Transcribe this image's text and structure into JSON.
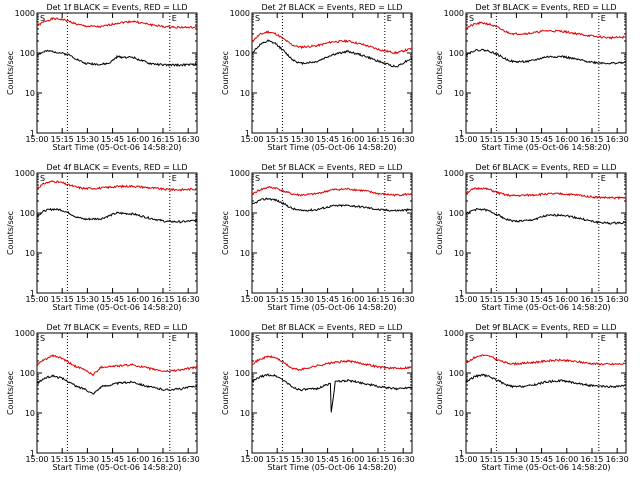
{
  "colors": {
    "events": "#000000",
    "lld": "#e00000",
    "background": "#ffffff"
  },
  "chart_data": [
    {
      "type": "line",
      "title": "Det 1f BLACK = Events, RED = LLD",
      "xlabel": "Start Time (05-Oct-06 14:58:20)",
      "ylabel": "Counts/sec",
      "yscale": "log",
      "ylim": [
        1,
        1000
      ],
      "ytick_labels": [
        "1",
        "10",
        "100",
        "1000"
      ],
      "xlim": [
        0,
        100
      ],
      "xtick_labels": [
        "15:00",
        "15:15",
        "15:30",
        "15:45",
        "16:00",
        "16:15",
        "16:30"
      ],
      "vlines": [
        {
          "x": 19,
          "label": "S"
        },
        {
          "x": 83,
          "label": "E"
        }
      ],
      "series": [
        {
          "name": "LLD",
          "color": "#e00000",
          "x": [
            0,
            5,
            10,
            15,
            20,
            25,
            30,
            40,
            50,
            60,
            70,
            80,
            90,
            100
          ],
          "values": [
            480,
            620,
            720,
            700,
            620,
            520,
            470,
            450,
            560,
            620,
            520,
            450,
            440,
            430
          ]
        },
        {
          "name": "Events",
          "color": "#000000",
          "x": [
            0,
            5,
            10,
            15,
            20,
            25,
            30,
            40,
            45,
            50,
            60,
            70,
            80,
            90,
            100
          ],
          "values": [
            90,
            110,
            110,
            100,
            90,
            70,
            55,
            52,
            55,
            80,
            78,
            55,
            50,
            50,
            52
          ]
        }
      ]
    },
    {
      "type": "line",
      "title": "Det 2f BLACK = Events, RED = LLD",
      "xlabel": "Start Time (05-Oct-06 14:58:20)",
      "ylabel": "Counts/sec",
      "yscale": "log",
      "ylim": [
        1,
        1000
      ],
      "ytick_labels": [
        "1",
        "10",
        "100",
        "1000"
      ],
      "xlim": [
        0,
        100
      ],
      "xtick_labels": [
        "15:00",
        "15:15",
        "15:30",
        "15:45",
        "16:00",
        "16:15",
        "16:30"
      ],
      "vlines": [
        {
          "x": 19,
          "label": "S"
        },
        {
          "x": 83,
          "label": "E"
        }
      ],
      "series": [
        {
          "name": "LLD",
          "color": "#e00000",
          "x": [
            0,
            5,
            10,
            15,
            20,
            25,
            30,
            40,
            50,
            60,
            70,
            80,
            90,
            100
          ],
          "values": [
            200,
            290,
            340,
            300,
            220,
            160,
            140,
            150,
            190,
            200,
            160,
            120,
            100,
            130
          ]
        },
        {
          "name": "Events",
          "color": "#000000",
          "x": [
            0,
            5,
            10,
            15,
            20,
            25,
            30,
            40,
            50,
            60,
            70,
            80,
            90,
            100
          ],
          "values": [
            100,
            160,
            200,
            170,
            110,
            70,
            55,
            60,
            90,
            110,
            85,
            60,
            45,
            75
          ]
        }
      ]
    },
    {
      "type": "line",
      "title": "Det 3f BLACK = Events, RED = LLD",
      "xlabel": "Start Time (05-Oct-06 14:58:20)",
      "ylabel": "Counts/sec",
      "yscale": "log",
      "ylim": [
        1,
        1000
      ],
      "ytick_labels": [
        "1",
        "10",
        "100",
        "1000"
      ],
      "xlim": [
        0,
        100
      ],
      "xtick_labels": [
        "15:00",
        "15:15",
        "15:30",
        "15:45",
        "16:00",
        "16:15",
        "16:30"
      ],
      "vlines": [
        {
          "x": 19,
          "label": "S"
        },
        {
          "x": 83,
          "label": "E"
        }
      ],
      "series": [
        {
          "name": "LLD",
          "color": "#e00000",
          "x": [
            0,
            5,
            10,
            15,
            20,
            25,
            30,
            40,
            50,
            60,
            70,
            80,
            90,
            100
          ],
          "values": [
            420,
            520,
            570,
            520,
            430,
            340,
            300,
            310,
            360,
            350,
            300,
            260,
            240,
            250
          ]
        },
        {
          "name": "Events",
          "color": "#000000",
          "x": [
            0,
            5,
            10,
            15,
            20,
            25,
            30,
            40,
            50,
            60,
            70,
            80,
            90,
            100
          ],
          "values": [
            90,
            115,
            120,
            110,
            90,
            70,
            60,
            62,
            80,
            82,
            68,
            58,
            55,
            58
          ]
        }
      ]
    },
    {
      "type": "line",
      "title": "Det 4f BLACK = Events, RED = LLD",
      "xlabel": "Start Time (05-Oct-06 14:58:20)",
      "ylabel": "Counts/sec",
      "yscale": "log",
      "ylim": [
        1,
        1000
      ],
      "ytick_labels": [
        "1",
        "10",
        "100",
        "1000"
      ],
      "xlim": [
        0,
        100
      ],
      "xtick_labels": [
        "15:00",
        "15:15",
        "15:30",
        "15:45",
        "16:00",
        "16:15",
        "16:30"
      ],
      "vlines": [
        {
          "x": 19,
          "label": "S"
        },
        {
          "x": 83,
          "label": "E"
        }
      ],
      "series": [
        {
          "name": "LLD",
          "color": "#e00000",
          "x": [
            0,
            5,
            10,
            15,
            20,
            25,
            30,
            40,
            50,
            60,
            70,
            80,
            90,
            100
          ],
          "values": [
            420,
            560,
            620,
            580,
            500,
            440,
            410,
            420,
            460,
            470,
            430,
            390,
            380,
            400
          ]
        },
        {
          "name": "Events",
          "color": "#000000",
          "x": [
            0,
            5,
            10,
            15,
            20,
            25,
            30,
            40,
            50,
            60,
            70,
            80,
            90,
            100
          ],
          "values": [
            85,
            115,
            125,
            120,
            100,
            78,
            70,
            72,
            100,
            95,
            75,
            62,
            60,
            65
          ]
        }
      ]
    },
    {
      "type": "line",
      "title": "Det 5f BLACK = Events, RED = LLD",
      "xlabel": "Start Time (05-Oct-06 14:58:20)",
      "ylabel": "Counts/sec",
      "yscale": "log",
      "ylim": [
        1,
        1000
      ],
      "ytick_labels": [
        "1",
        "10",
        "100",
        "1000"
      ],
      "xlim": [
        0,
        100
      ],
      "xtick_labels": [
        "15:00",
        "15:15",
        "15:30",
        "15:45",
        "16:00",
        "16:15",
        "16:30"
      ],
      "vlines": [
        {
          "x": 19,
          "label": "S"
        },
        {
          "x": 83,
          "label": "E"
        }
      ],
      "series": [
        {
          "name": "LLD",
          "color": "#e00000",
          "x": [
            0,
            5,
            10,
            15,
            20,
            25,
            30,
            40,
            50,
            60,
            70,
            80,
            90,
            100
          ],
          "values": [
            300,
            380,
            440,
            420,
            350,
            300,
            280,
            300,
            380,
            400,
            360,
            300,
            280,
            300
          ]
        },
        {
          "name": "Events",
          "color": "#000000",
          "x": [
            0,
            5,
            10,
            15,
            20,
            25,
            30,
            40,
            50,
            60,
            70,
            80,
            90,
            100
          ],
          "values": [
            160,
            210,
            230,
            210,
            170,
            130,
            115,
            120,
            150,
            155,
            140,
            120,
            115,
            120
          ]
        }
      ]
    },
    {
      "type": "line",
      "title": "Det 6f BLACK = Events, RED = LLD",
      "xlabel": "Start Time (05-Oct-06 14:58:20)",
      "ylabel": "Counts/sec",
      "yscale": "log",
      "ylim": [
        1,
        1000
      ],
      "ytick_labels": [
        "1",
        "10",
        "100",
        "1000"
      ],
      "xlim": [
        0,
        100
      ],
      "xtick_labels": [
        "15:00",
        "15:15",
        "15:30",
        "15:45",
        "16:00",
        "16:15",
        "16:30"
      ],
      "vlines": [
        {
          "x": 19,
          "label": "S"
        },
        {
          "x": 83,
          "label": "E"
        }
      ],
      "series": [
        {
          "name": "LLD",
          "color": "#e00000",
          "x": [
            0,
            5,
            10,
            15,
            20,
            25,
            30,
            40,
            50,
            60,
            70,
            80,
            90,
            100
          ],
          "values": [
            320,
            400,
            420,
            380,
            320,
            280,
            270,
            280,
            300,
            300,
            280,
            250,
            240,
            240
          ]
        },
        {
          "name": "Events",
          "color": "#000000",
          "x": [
            0,
            5,
            10,
            15,
            20,
            25,
            30,
            40,
            50,
            60,
            70,
            80,
            90,
            100
          ],
          "values": [
            95,
            120,
            125,
            110,
            90,
            70,
            62,
            65,
            85,
            90,
            75,
            60,
            55,
            58
          ]
        }
      ]
    },
    {
      "type": "line",
      "title": "Det 7f BLACK = Events, RED = LLD",
      "xlabel": "Start Time (05-Oct-06 14:58:20)",
      "ylabel": "Counts/sec",
      "yscale": "log",
      "ylim": [
        1,
        1000
      ],
      "ytick_labels": [
        "1",
        "10",
        "100",
        "1000"
      ],
      "xlim": [
        0,
        100
      ],
      "xtick_labels": [
        "15:00",
        "15:15",
        "15:30",
        "15:45",
        "16:00",
        "16:15",
        "16:30"
      ],
      "vlines": [
        {
          "x": 19,
          "label": "S"
        },
        {
          "x": 83,
          "label": "E"
        }
      ],
      "series": [
        {
          "name": "LLD",
          "color": "#e00000",
          "x": [
            0,
            5,
            10,
            15,
            20,
            25,
            30,
            35,
            40,
            50,
            60,
            70,
            80,
            90,
            100
          ],
          "values": [
            160,
            220,
            270,
            240,
            180,
            140,
            120,
            90,
            140,
            150,
            160,
            130,
            110,
            120,
            140
          ]
        },
        {
          "name": "Events",
          "color": "#000000",
          "x": [
            0,
            5,
            10,
            15,
            20,
            25,
            30,
            35,
            40,
            50,
            60,
            70,
            80,
            90,
            100
          ],
          "values": [
            55,
            75,
            85,
            75,
            60,
            45,
            40,
            30,
            45,
            55,
            60,
            45,
            38,
            40,
            48
          ]
        }
      ]
    },
    {
      "type": "line",
      "title": "Det 8f BLACK = Events, RED = LLD",
      "xlabel": "Start Time (05-Oct-06 14:58:20)",
      "ylabel": "Counts/sec",
      "yscale": "log",
      "ylim": [
        1,
        1000
      ],
      "ytick_labels": [
        "1",
        "10",
        "100",
        "1000"
      ],
      "xlim": [
        0,
        100
      ],
      "xtick_labels": [
        "15:00",
        "15:15",
        "15:30",
        "15:45",
        "16:00",
        "16:15",
        "16:30"
      ],
      "vlines": [
        {
          "x": 19,
          "label": "S"
        },
        {
          "x": 83,
          "label": "E"
        }
      ],
      "series": [
        {
          "name": "LLD",
          "color": "#e00000",
          "x": [
            0,
            5,
            10,
            15,
            20,
            25,
            30,
            40,
            50,
            60,
            70,
            80,
            90,
            100
          ],
          "values": [
            170,
            220,
            260,
            240,
            180,
            130,
            120,
            150,
            180,
            200,
            170,
            140,
            130,
            140
          ]
        },
        {
          "name": "Events",
          "color": "#000000",
          "x": [
            0,
            5,
            10,
            15,
            20,
            25,
            30,
            40,
            49,
            49.5,
            52,
            60,
            70,
            80,
            90,
            100
          ],
          "values": [
            60,
            80,
            90,
            85,
            65,
            45,
            38,
            40,
            55,
            10,
            60,
            65,
            55,
            45,
            40,
            45
          ]
        }
      ]
    },
    {
      "type": "line",
      "title": "Det 9f BLACK = Events, RED = LLD",
      "xlabel": "Start Time (05-Oct-06 14:58:20)",
      "ylabel": "Counts/sec",
      "yscale": "log",
      "ylim": [
        1,
        1000
      ],
      "ytick_labels": [
        "1",
        "10",
        "100",
        "1000"
      ],
      "xlim": [
        0,
        100
      ],
      "xtick_labels": [
        "15:00",
        "15:15",
        "15:30",
        "15:45",
        "16:00",
        "16:15",
        "16:30"
      ],
      "vlines": [
        {
          "x": 19,
          "label": "S"
        },
        {
          "x": 83,
          "label": "E"
        }
      ],
      "series": [
        {
          "name": "LLD",
          "color": "#e00000",
          "x": [
            0,
            5,
            10,
            15,
            20,
            25,
            30,
            40,
            50,
            60,
            70,
            80,
            90,
            100
          ],
          "values": [
            180,
            240,
            280,
            260,
            210,
            180,
            170,
            180,
            200,
            210,
            190,
            170,
            165,
            170
          ]
        },
        {
          "name": "Events",
          "color": "#000000",
          "x": [
            0,
            5,
            10,
            15,
            20,
            25,
            30,
            40,
            50,
            60,
            70,
            80,
            90,
            100
          ],
          "values": [
            60,
            80,
            90,
            80,
            65,
            50,
            45,
            48,
            60,
            65,
            55,
            47,
            45,
            48
          ]
        }
      ]
    }
  ]
}
